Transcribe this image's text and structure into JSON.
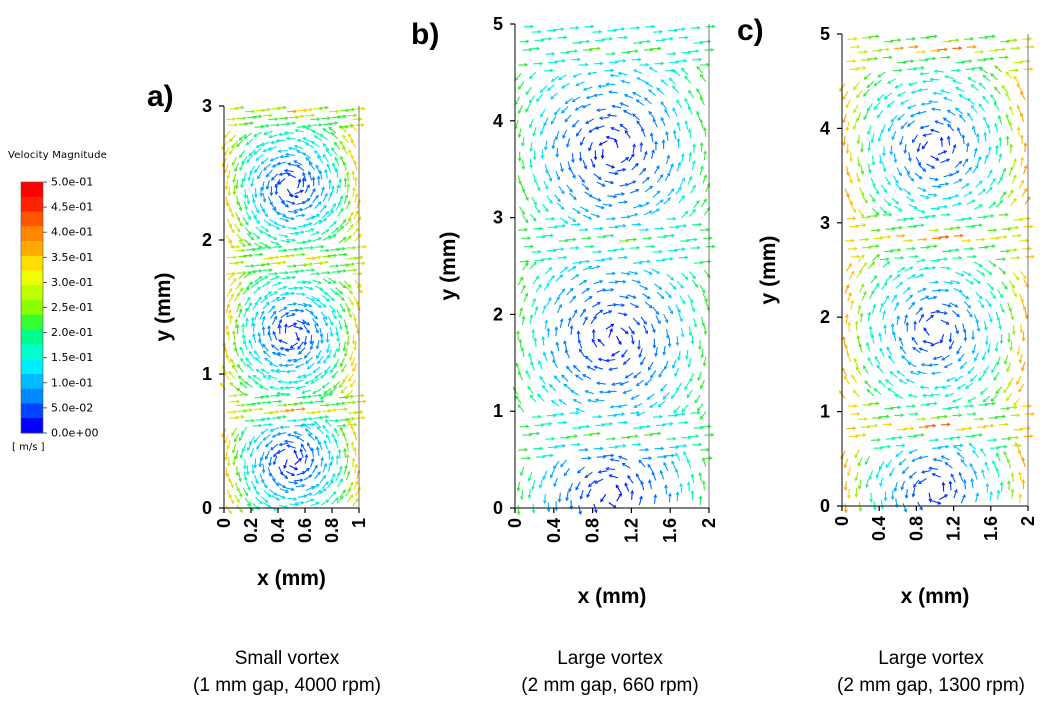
{
  "legend": {
    "title": "Velocity Magnitude",
    "unit": "[ m/s ]",
    "colors": [
      "#0000ff",
      "#0044ff",
      "#0088ff",
      "#00bbff",
      "#00eeff",
      "#00ffcc",
      "#00ff88",
      "#33ff33",
      "#88ff00",
      "#bbff00",
      "#eeff00",
      "#ffdd00",
      "#ffaa00",
      "#ff8800",
      "#ff5500",
      "#ff2200",
      "#ff0000"
    ],
    "tick_labels": [
      "5.0e-01",
      "4.5e-01",
      "4.0e-01",
      "3.5e-01",
      "3.0e-01",
      "2.5e-01",
      "2.0e-01",
      "1.5e-01",
      "1.0e-01",
      "5.0e-02",
      "0.0e+00"
    ],
    "range": [
      0.0,
      0.5
    ]
  },
  "chart_data": [
    {
      "type": "heatmap",
      "panel_label": "a)",
      "xlabel": "x (mm)",
      "ylabel": "y (mm)",
      "xlim": [
        0,
        1
      ],
      "ylim": [
        0,
        3
      ],
      "x_ticks": [
        "0",
        "0.2",
        "0.4",
        "0.6",
        "0.8",
        "1"
      ],
      "y_ticks": [
        "0",
        "1",
        "2",
        "3"
      ],
      "vortex_centers_y": [
        0.35,
        1.3,
        2.4
      ],
      "high_velocity_bands_y": [
        0.73,
        1.85,
        2.95
      ],
      "caption_lines": [
        "Small  vortex",
        "(1 mm gap, 4000 rpm)"
      ]
    },
    {
      "type": "heatmap",
      "panel_label": "b)",
      "xlabel": "x (mm)",
      "ylabel": "y (mm)",
      "xlim": [
        0,
        2
      ],
      "ylim": [
        0,
        5
      ],
      "x_ticks": [
        "0",
        "0.4",
        "0.8",
        "1.2",
        "1.6",
        "2"
      ],
      "y_ticks": [
        "0",
        "1",
        "2",
        "3",
        "4",
        "5"
      ],
      "vortex_centers_y": [
        0.1,
        1.75,
        3.7
      ],
      "high_velocity_bands_y": [
        0.75,
        2.75,
        4.75
      ],
      "caption_lines": [
        "Large  vortex",
        "(2 mm gap, 660 rpm)"
      ]
    },
    {
      "type": "heatmap",
      "panel_label": "c)",
      "xlabel": "x (mm)",
      "ylabel": "y (mm)",
      "xlim": [
        0,
        2
      ],
      "ylim": [
        0,
        5
      ],
      "x_ticks": [
        "0",
        "0.4",
        "0.8",
        "1.2",
        "1.6",
        "2"
      ],
      "y_ticks": [
        "0",
        "1",
        "2",
        "3",
        "4",
        "5"
      ],
      "vortex_centers_y": [
        0.15,
        1.85,
        3.8
      ],
      "high_velocity_bands_y": [
        0.85,
        2.85,
        4.85
      ],
      "caption_lines": [
        "Large  vortex",
        "(2 mm gap, 1300 rpm)"
      ]
    }
  ]
}
